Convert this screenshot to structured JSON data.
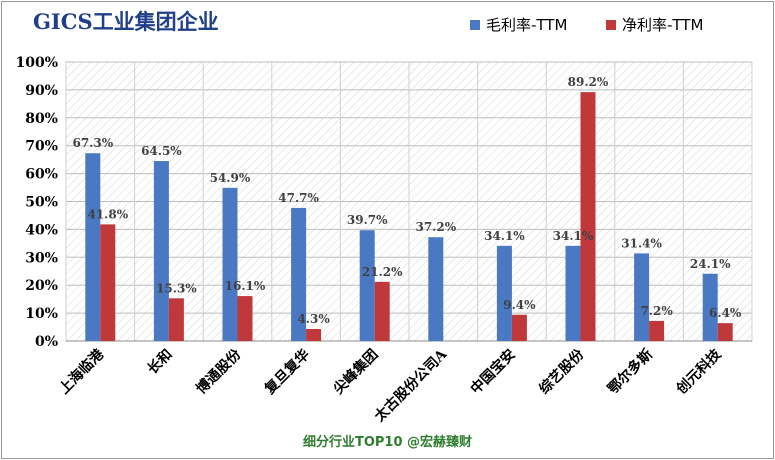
{
  "title": "GICS工业集团企业",
  "footer": "细分行业TOP10 @宏赫臻财",
  "colors": {
    "gross": "#4b78c2",
    "net": "#c0393a",
    "title": "#1f3f8a",
    "footer": "#2f7d2f"
  },
  "chart_data": {
    "type": "bar",
    "categories": [
      "上海临港",
      "长和",
      "博通股份",
      "复旦复华",
      "尖峰集团",
      "太古股份公司A",
      "中国宝安",
      "综艺股份",
      "鄂尔多斯",
      "创元科技"
    ],
    "series": [
      {
        "name": "毛利率-TTM",
        "values": [
          67.3,
          64.5,
          54.9,
          47.7,
          39.7,
          37.2,
          34.1,
          34.1,
          31.4,
          24.1
        ],
        "labels": [
          "67.3%",
          "64.5%",
          "54.9%",
          "47.7%",
          "39.7%",
          "37.2%",
          "34.1%",
          "34.1%",
          "31.4%",
          "24.1%"
        ]
      },
      {
        "name": "净利率-TTM",
        "values": [
          41.8,
          15.3,
          16.1,
          4.3,
          21.2,
          null,
          9.4,
          89.2,
          7.2,
          6.4
        ],
        "labels": [
          "41.8%",
          "15.3%",
          "16.1%",
          "4.3%",
          "21.2%",
          "",
          "9.4%",
          "89.2%",
          "7.2%",
          "6.4%"
        ]
      }
    ],
    "ylim": [
      0,
      100
    ],
    "yticks": [
      "0%",
      "10%",
      "20%",
      "30%",
      "40%",
      "50%",
      "60%",
      "70%",
      "80%",
      "90%",
      "100%"
    ],
    "grid": true,
    "legend": "top-right"
  }
}
